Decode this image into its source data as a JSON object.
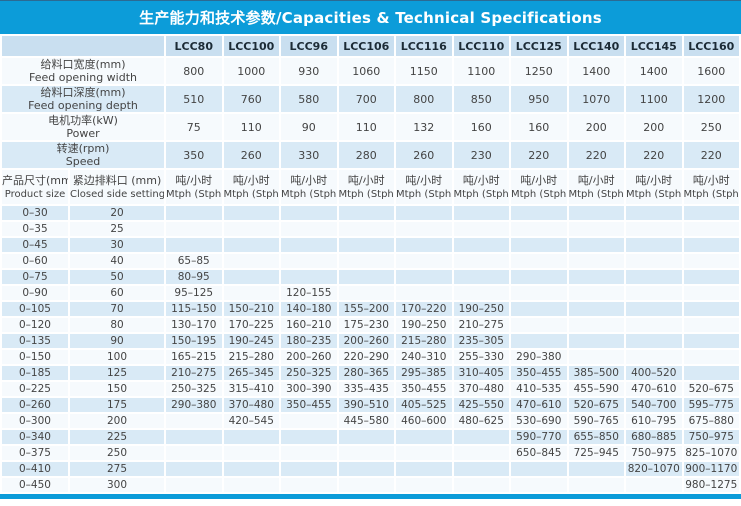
{
  "title": "生产能力和技术参数/Capacities & Technical Specifications",
  "columns": [
    "LCC80",
    "LCC100",
    "LCC96",
    "LCC106",
    "LCC116",
    "LCC110",
    "LCC125",
    "LCC140",
    "LCC145",
    "LCC160"
  ],
  "spec_rows": [
    {
      "label_cn": "给料口宽度(mm)",
      "label_en": "Feed opening width",
      "values": [
        "800",
        "1000",
        "930",
        "1060",
        "1150",
        "1100",
        "1250",
        "1400",
        "1400",
        "1600"
      ]
    },
    {
      "label_cn": "给料口深度(mm)",
      "label_en": "Feed opening depth",
      "values": [
        "510",
        "760",
        "580",
        "700",
        "800",
        "850",
        "950",
        "1070",
        "1100",
        "1200"
      ]
    },
    {
      "label_cn": "电机功率(kW)",
      "label_en": "Power",
      "values": [
        "75",
        "110",
        "90",
        "110",
        "132",
        "160",
        "160",
        "200",
        "200",
        "250"
      ]
    },
    {
      "label_cn": "转速(rpm)",
      "label_en": "Speed",
      "values": [
        "350",
        "260",
        "330",
        "280",
        "260",
        "230",
        "220",
        "220",
        "220",
        "220"
      ]
    }
  ],
  "capacity_header": {
    "size_cn": "产品尺寸(mm)",
    "size_en": "Product size",
    "css_cn": "紧边排料口 (mm)",
    "css_en": "Closed side setting",
    "unit_cn": "吨/小时",
    "unit_en": "Mtph (Stph)"
  },
  "capacity_rows": [
    {
      "size": "0–30",
      "css": "20",
      "values": [
        "",
        "",
        "",
        "",
        "",
        "",
        "",
        "",
        "",
        ""
      ]
    },
    {
      "size": "0–35",
      "css": "25",
      "values": [
        "",
        "",
        "",
        "",
        "",
        "",
        "",
        "",
        "",
        ""
      ]
    },
    {
      "size": "0–45",
      "css": "30",
      "values": [
        "",
        "",
        "",
        "",
        "",
        "",
        "",
        "",
        "",
        ""
      ]
    },
    {
      "size": "0–60",
      "css": "40",
      "values": [
        "65–85",
        "",
        "",
        "",
        "",
        "",
        "",
        "",
        "",
        ""
      ]
    },
    {
      "size": "0–75",
      "css": "50",
      "values": [
        "80–95",
        "",
        "",
        "",
        "",
        "",
        "",
        "",
        "",
        ""
      ]
    },
    {
      "size": "0–90",
      "css": "60",
      "values": [
        "95–125",
        "",
        "120–155",
        "",
        "",
        "",
        "",
        "",
        "",
        ""
      ]
    },
    {
      "size": "0–105",
      "css": "70",
      "values": [
        "115–150",
        "150–210",
        "140–180",
        "155–200",
        "170–220",
        "190–250",
        "",
        "",
        "",
        ""
      ]
    },
    {
      "size": "0–120",
      "css": "80",
      "values": [
        "130–170",
        "170–225",
        "160–210",
        "175–230",
        "190–250",
        "210–275",
        "",
        "",
        "",
        ""
      ]
    },
    {
      "size": "0–135",
      "css": "90",
      "values": [
        "150–195",
        "190–245",
        "180–235",
        "200–260",
        "215–280",
        "235–305",
        "",
        "",
        "",
        ""
      ]
    },
    {
      "size": "0–150",
      "css": "100",
      "values": [
        "165–215",
        "215–280",
        "200–260",
        "220–290",
        "240–310",
        "255–330",
        "290–380",
        "",
        "",
        ""
      ]
    },
    {
      "size": "0–185",
      "css": "125",
      "values": [
        "210–275",
        "265–345",
        "250–325",
        "280–365",
        "295–385",
        "310–405",
        "350–455",
        "385–500",
        "400–520",
        ""
      ]
    },
    {
      "size": "0–225",
      "css": "150",
      "values": [
        "250–325",
        "315–410",
        "300–390",
        "335–435",
        "350–455",
        "370–480",
        "410–535",
        "455–590",
        "470–610",
        "520–675"
      ]
    },
    {
      "size": "0–260",
      "css": "175",
      "values": [
        "290–380",
        "370–480",
        "350–455",
        "390–510",
        "405–525",
        "425–550",
        "470–610",
        "520–675",
        "540–700",
        "595–775"
      ]
    },
    {
      "size": "0–300",
      "css": "200",
      "values": [
        "",
        "420–545",
        "",
        "445–580",
        "460–600",
        "480–625",
        "530–690",
        "590–765",
        "610–795",
        "675–880"
      ]
    },
    {
      "size": "0–340",
      "css": "225",
      "values": [
        "",
        "",
        "",
        "",
        "",
        "",
        "590–770",
        "655–850",
        "680–885",
        "750–975"
      ]
    },
    {
      "size": "0–375",
      "css": "250",
      "values": [
        "",
        "",
        "",
        "",
        "",
        "",
        "650–845",
        "725–945",
        "750–975",
        "825–1070"
      ]
    },
    {
      "size": "0–410",
      "css": "275",
      "values": [
        "",
        "",
        "",
        "",
        "",
        "",
        "",
        "",
        "820–1070",
        "900–1170"
      ]
    },
    {
      "size": "0–450",
      "css": "300",
      "values": [
        "",
        "",
        "",
        "",
        "",
        "",
        "",
        "",
        "",
        "980–1275"
      ]
    }
  ],
  "colors": {
    "title_bar": "#0c9cd9",
    "title_text": "#ffffff",
    "top_edge": "#2b6a93",
    "header_cell": "#c9dff0",
    "row_blue": "#d9eaf6",
    "row_white": "#f6fafd",
    "text": "#444444",
    "header_text": "#1c2b36"
  }
}
